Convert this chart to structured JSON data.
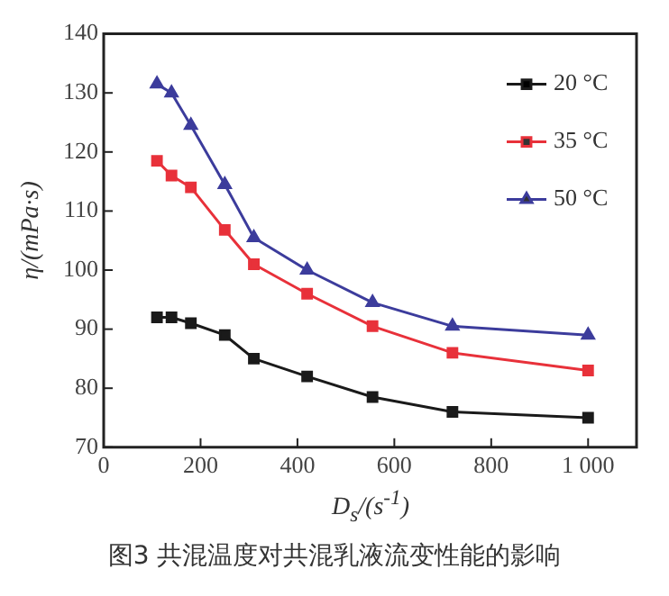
{
  "chart_data": {
    "type": "line",
    "xlabel": "D$_{s}$/(s$^{-1}$)",
    "ylabel": "η/(mPa·s)",
    "annotations": [
      "图3  共混温度对共混乳液流变性能的影响"
    ],
    "x": [
      110,
      140,
      180,
      250,
      310,
      420,
      555,
      720,
      1000
    ],
    "series": [
      {
        "name": "20 °C",
        "color": "#1a1a1a",
        "marker": "square",
        "values": [
          92,
          92,
          91,
          89,
          85,
          82,
          78.5,
          76,
          75
        ]
      },
      {
        "name": "35 °C",
        "color": "#e8313a",
        "marker": "square",
        "values": [
          118.5,
          116,
          114,
          106.8,
          101,
          96,
          90.5,
          86,
          83
        ]
      },
      {
        "name": "50 °C",
        "color": "#3c3c9c",
        "marker": "triangle",
        "values": [
          131.5,
          130,
          124.5,
          114.5,
          105.5,
          100,
          94.5,
          90.5,
          89
        ]
      }
    ],
    "xlim": [
      0,
      1100
    ],
    "xticks": [
      0,
      200,
      400,
      600,
      800,
      {
        "value": 1000,
        "label": "1 000"
      }
    ],
    "ylim": [
      70,
      140
    ],
    "yticks": [
      70,
      80,
      90,
      100,
      110,
      120,
      130,
      140
    ],
    "grid": false,
    "legend": "top right",
    "line_style": "solid"
  }
}
